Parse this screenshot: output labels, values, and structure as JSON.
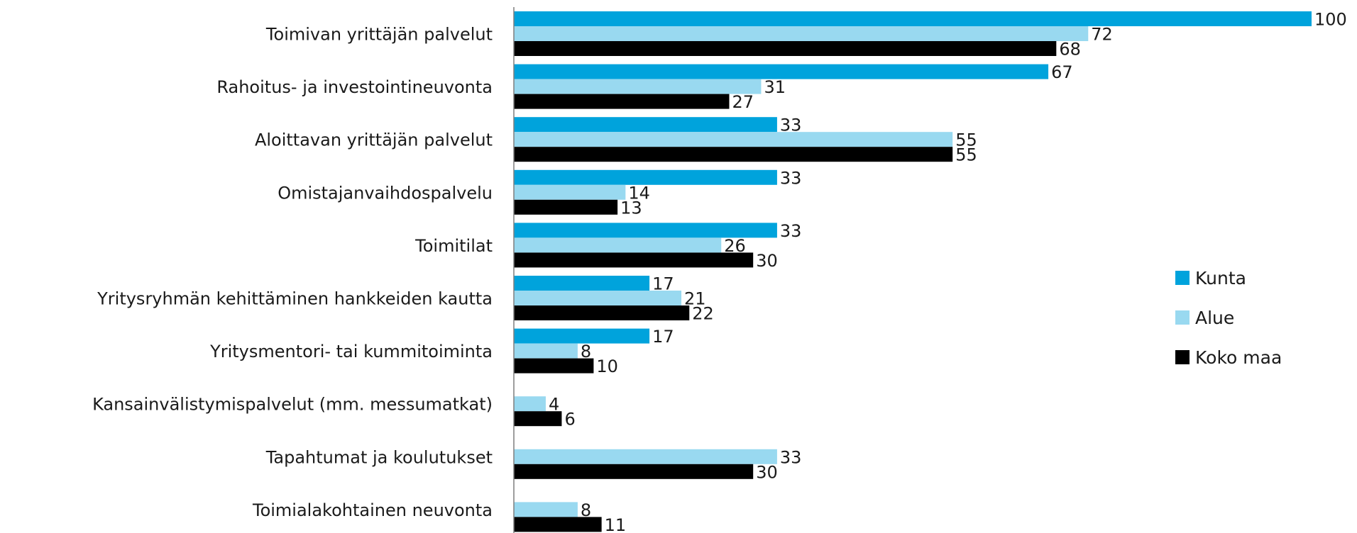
{
  "chart_data": {
    "type": "bar",
    "orientation": "horizontal",
    "categories": [
      "Toimivan yrittäjän palvelut",
      "Rahoitus- ja investointineuvonta",
      "Aloittavan yrittäjän palvelut",
      "Omistajanvaihdospalvelu",
      "Toimitilat",
      "Yritysryhmän kehittäminen hankkeiden kautta",
      "Yritysmentori- tai kummitoiminta",
      "Kansainvälistymispalvelut (mm. messumatkat)",
      "Tapahtumat ja koulutukset",
      "Toimialakohtainen neuvonta"
    ],
    "series": [
      {
        "name": "Kunta",
        "color": "#00a3dc",
        "values": [
          100,
          67,
          33,
          33,
          33,
          17,
          17,
          null,
          null,
          null
        ]
      },
      {
        "name": "Alue",
        "color": "#99d9f0",
        "values": [
          72,
          31,
          55,
          14,
          26,
          21,
          8,
          4,
          33,
          8
        ]
      },
      {
        "name": "Koko maa",
        "color": "#000000",
        "values": [
          68,
          27,
          55,
          13,
          30,
          22,
          10,
          6,
          30,
          11
        ]
      }
    ],
    "xlim": [
      0,
      100
    ],
    "grid": false,
    "legend_position": "right"
  }
}
